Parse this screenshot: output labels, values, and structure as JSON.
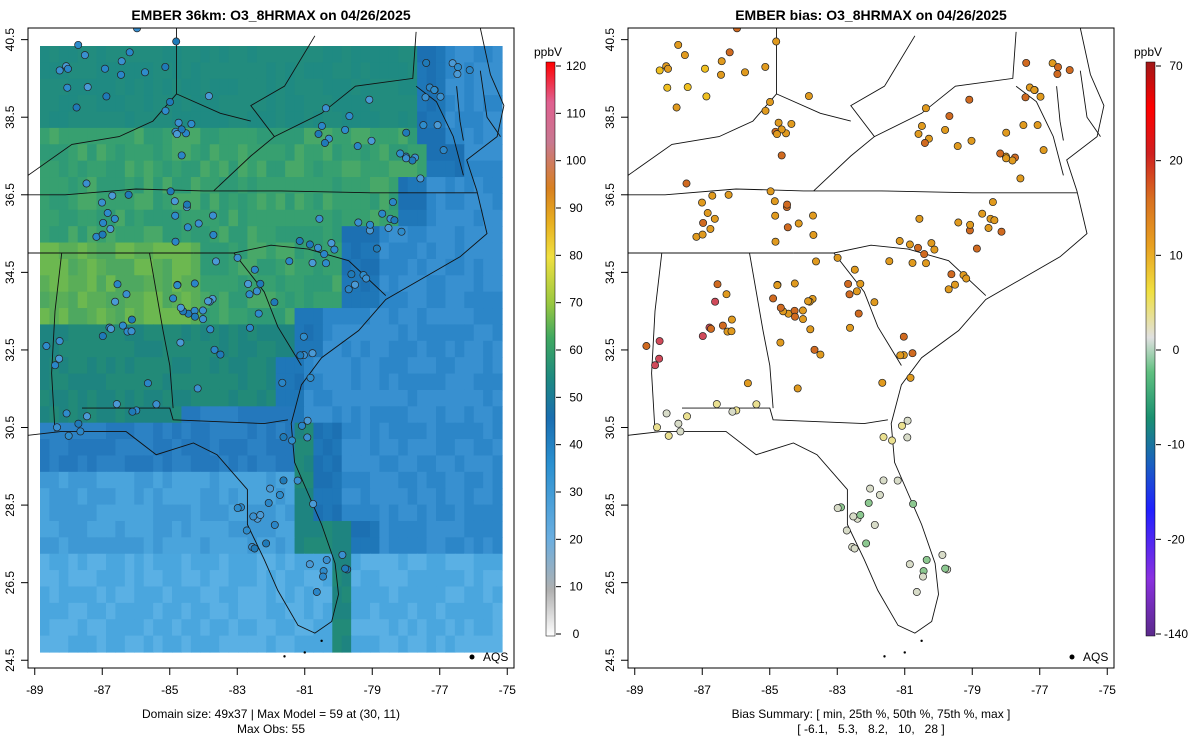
{
  "left_panel": {
    "title": "EMBER 36km: O3_8HRMAX on 04/26/2025",
    "footer_line1": "Domain size: 49x37 | Max Model = 59 at (30, 11)",
    "footer_line2": "Max Obs: 55",
    "legend_label": "AQS",
    "colorbar_unit": "ppbV",
    "colorbar_ticks": [
      "0",
      "10",
      "20",
      "30",
      "40",
      "50",
      "60",
      "70",
      "80",
      "90",
      "100",
      "110",
      "120"
    ]
  },
  "right_panel": {
    "title": "EMBER bias: O3_8HRMAX on 04/26/2025",
    "footer_line1": "Bias Summary: [ min, 25th %, 50th %, 75th %, max ]",
    "footer_line2": "[ -6.1,   5.3,   8.2,   10,   28 ]",
    "legend_label": "AQS",
    "colorbar_unit": "ppbV",
    "colorbar_ticks": [
      "-140",
      "-20",
      "-10",
      "0",
      "10",
      "20",
      "70"
    ]
  },
  "axes": {
    "x_ticks": [
      "-89",
      "-87",
      "-85",
      "-83",
      "-81",
      "-79",
      "-77",
      "-75"
    ],
    "y_ticks": [
      "24.5",
      "26.5",
      "28.5",
      "30.5",
      "32.5",
      "34.5",
      "36.5",
      "38.5",
      "40.5"
    ],
    "xlim": [
      -89.2,
      -74.8
    ],
    "ylim": [
      24.3,
      40.8
    ]
  },
  "colors": {
    "model_field_inland": "#2d9a7a",
    "model_field_coast": "#2a7fc0",
    "model_field_gulf": "#4aa0d8",
    "bias_positive": "#e09a1e",
    "bias_high": "#d06a20",
    "bias_extreme": "#d04a5a",
    "bias_neutral": "#d8dcc8",
    "bias_negative": "#8cc890"
  }
}
